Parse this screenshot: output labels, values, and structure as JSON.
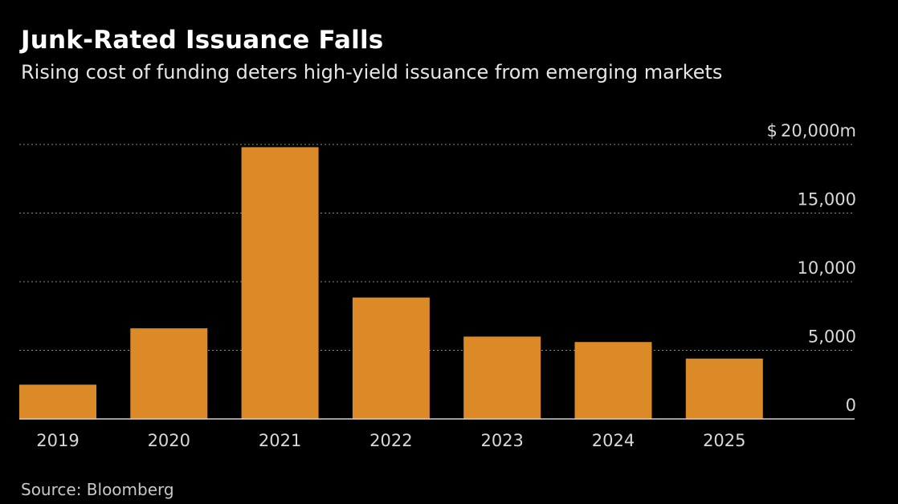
{
  "colors": {
    "background": "#000000",
    "bar": "#db8a27",
    "grid": "#8a8a8a",
    "axis": "#cfcfcf",
    "text": "#ffffff",
    "muted_text": "#d8d8d8"
  },
  "source": "Source: Bloomberg",
  "chart_data": {
    "type": "bar",
    "title": "Junk-Rated Issuance Falls",
    "subtitle": "Rising cost of funding deters high-yield issuance from emerging markets",
    "xlabel": "",
    "ylabel": "",
    "categories": [
      "2019",
      "2020",
      "2021",
      "2022",
      "2023",
      "2024",
      "2025"
    ],
    "values": [
      2500,
      6600,
      19800,
      8850,
      6000,
      5600,
      4400
    ],
    "ylim": [
      0,
      20000
    ],
    "yticks": [
      0,
      5000,
      10000,
      15000,
      20000
    ],
    "ytick_labels": [
      "0",
      "5,000",
      "10,000",
      "15,000",
      "$ 20,000m"
    ],
    "grid": true,
    "grid_style": "dotted",
    "y_axis_position": "right"
  }
}
